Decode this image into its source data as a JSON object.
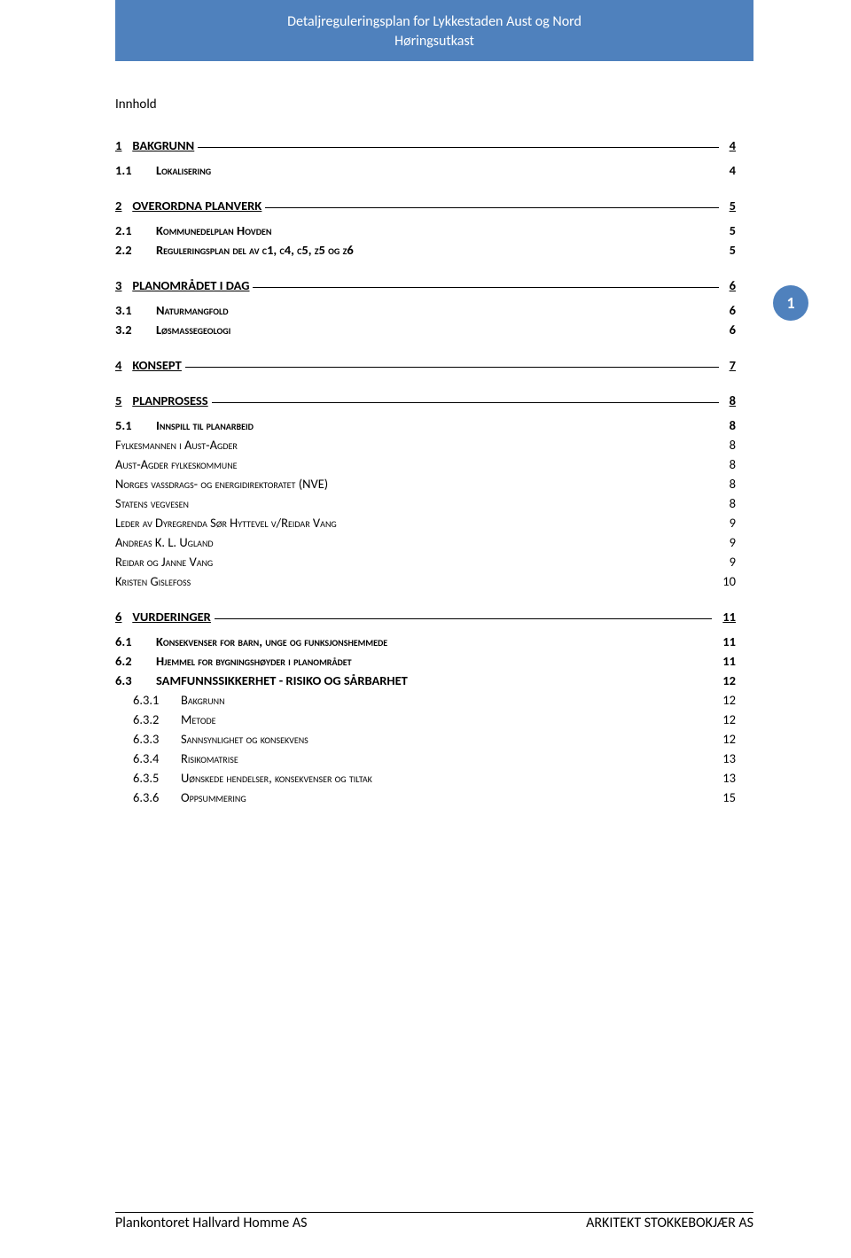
{
  "header": {
    "line1": "Detaljreguleringsplan for Lykkestaden Aust og Nord",
    "line2": "Høringsutkast"
  },
  "page_badge": "1",
  "toc_title": "Innhold",
  "toc": [
    {
      "level": 1,
      "num": "1",
      "label": "BAKGRUNN",
      "page": "4"
    },
    {
      "level": 2,
      "num": "1.1",
      "label": "Lokalisering",
      "page": "4",
      "smallcaps": true
    },
    {
      "level": 1,
      "num": "2",
      "label": "OVERORDNA PLANVERK",
      "page": "5"
    },
    {
      "level": 2,
      "num": "2.1",
      "label": "Kommunedelplan Hovden",
      "page": "5",
      "smallcaps": true
    },
    {
      "level": 2,
      "num": "2.2",
      "label": "Reguleringsplan del av c1, c4, c5, z5 og z6",
      "page": "5",
      "smallcaps": true
    },
    {
      "level": 1,
      "num": "3",
      "label": "PLANOMRÅDET I DAG",
      "page": "6"
    },
    {
      "level": 2,
      "num": "3.1",
      "label": "Naturmangfold",
      "page": "6",
      "smallcaps": true
    },
    {
      "level": 2,
      "num": "3.2",
      "label": "Løsmassegeologi",
      "page": "6",
      "smallcaps": true
    },
    {
      "level": 1,
      "num": "4",
      "label": "KONSEPT",
      "page": "7"
    },
    {
      "level": 1,
      "num": "5",
      "label": "PLANPROSESS",
      "page": "8"
    },
    {
      "level": 2,
      "num": "5.1",
      "label": "Innspill til planarbeid",
      "page": "8",
      "smallcaps": true
    },
    {
      "level": 3,
      "num": "",
      "label": "Fylkesmannen i Aust-Agder",
      "page": "8",
      "smallcaps": true
    },
    {
      "level": 3,
      "num": "",
      "label": "Aust-Agder fylkeskommune",
      "page": "8",
      "smallcaps": true
    },
    {
      "level": 3,
      "num": "",
      "label": "Norges vassdrags- og energidirektoratet (NVE)",
      "page": "8",
      "smallcaps": true
    },
    {
      "level": 3,
      "num": "",
      "label": "Statens vegvesen",
      "page": "8",
      "smallcaps": true
    },
    {
      "level": 3,
      "num": "",
      "label": "Leder av Dyregrenda Sør Hyttevel v/Reidar Vang",
      "page": "9",
      "smallcaps": true
    },
    {
      "level": 3,
      "num": "",
      "label": "Andreas K. L. Ugland",
      "page": "9",
      "smallcaps": true
    },
    {
      "level": 3,
      "num": "",
      "label": "Reidar og Janne Vang",
      "page": "9",
      "smallcaps": true
    },
    {
      "level": 3,
      "num": "",
      "label": "Kristen Gislefoss",
      "page": "10",
      "smallcaps": true
    },
    {
      "level": 1,
      "num": "6",
      "label": "VURDERINGER",
      "page": "11"
    },
    {
      "level": 2,
      "num": "6.1",
      "label": "Konsekvenser for barn, unge og funksjonshemmede",
      "page": "11",
      "smallcaps": true
    },
    {
      "level": 2,
      "num": "6.2",
      "label": "Hjemmel for bygningshøyder i planområdet",
      "page": "11",
      "smallcaps": true
    },
    {
      "level": 2,
      "num": "6.3",
      "label": "SAMFUNNSSIKKERHET - RISIKO OG SÅRBARHET",
      "page": "12"
    },
    {
      "level": 4,
      "num": "6.3.1",
      "label": "Bakgrunn",
      "page": "12",
      "smallcaps": true
    },
    {
      "level": 4,
      "num": "6.3.2",
      "label": "Metode",
      "page": "12",
      "smallcaps": true
    },
    {
      "level": 4,
      "num": "6.3.3",
      "label": "Sannsynlighet og konsekvens",
      "page": "12",
      "smallcaps": true
    },
    {
      "level": 4,
      "num": "6.3.4",
      "label": "Risikomatrise",
      "page": "13",
      "smallcaps": true
    },
    {
      "level": 4,
      "num": "6.3.5",
      "label": "Uønskede hendelser, konsekvenser og tiltak",
      "page": "13",
      "smallcaps": true
    },
    {
      "level": 4,
      "num": "6.3.6",
      "label": "Oppsummering",
      "page": "15",
      "smallcaps": true
    }
  ],
  "footer": {
    "left": "Plankontoret Hallvard Homme AS",
    "right": "ARKITEKT STOKKEBOKJÆR AS"
  },
  "colors": {
    "header_bg": "#4f81bd",
    "header_text": "#ffffff",
    "text": "#000000",
    "page_bg": "#ffffff"
  }
}
